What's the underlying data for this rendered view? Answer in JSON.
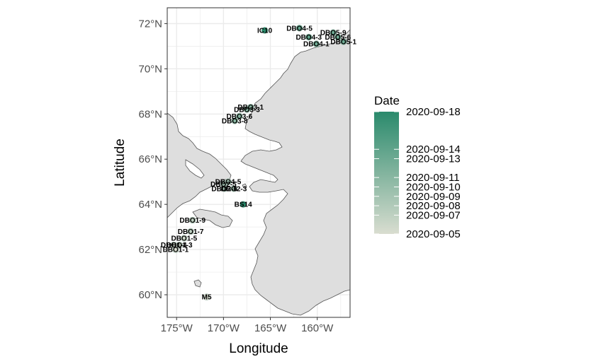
{
  "chart_data": {
    "type": "scatter",
    "xlabel": "Longitude",
    "ylabel": "Latitude",
    "xlim": [
      -176,
      -156.5
    ],
    "ylim": [
      59,
      72.7
    ],
    "x_ticks": [
      {
        "value": -175,
        "label": "175°W"
      },
      {
        "value": -170,
        "label": "170°W"
      },
      {
        "value": -165,
        "label": "165°W"
      },
      {
        "value": -160,
        "label": "160°W"
      }
    ],
    "y_ticks": [
      {
        "value": 60,
        "label": "60°N"
      },
      {
        "value": 62,
        "label": "62°N"
      },
      {
        "value": 64,
        "label": "64°N"
      },
      {
        "value": 66,
        "label": "66°N"
      },
      {
        "value": 68,
        "label": "68°N"
      },
      {
        "value": 70,
        "label": "70°N"
      },
      {
        "value": 72,
        "label": "72°N"
      }
    ],
    "grid": true,
    "legend": {
      "title": "Date",
      "placement": "right",
      "min_date": "2020-09-05",
      "max_date": "2020-09-18",
      "low_color": "#d9ddd0",
      "high_color": "#2a8a6c",
      "breaks": [
        "2020-09-05",
        "2020-09-07",
        "2020-09-08",
        "2020-09-09",
        "2020-09-10",
        "2020-09-11",
        "2020-09-13",
        "2020-09-14",
        "2020-09-18"
      ]
    },
    "stations": [
      {
        "name": "IC10",
        "lon": -165.6,
        "lat": 71.7,
        "date": "2020-09-18"
      },
      {
        "name": "DBO4-5",
        "lon": -161.9,
        "lat": 71.8,
        "date": "2020-09-14"
      },
      {
        "name": "DBO4-3",
        "lon": -160.9,
        "lat": 71.4,
        "date": "2020-09-14"
      },
      {
        "name": "DBO4-1",
        "lon": -160.1,
        "lat": 71.1,
        "date": "2020-09-13"
      },
      {
        "name": "DBO5-9",
        "lon": -158.3,
        "lat": 71.6,
        "date": "2020-09-13"
      },
      {
        "name": "DBO5-6",
        "lon": -157.8,
        "lat": 71.4,
        "date": "2020-09-13"
      },
      {
        "name": "DBO5-1",
        "lon": -157.2,
        "lat": 71.2,
        "date": "2020-09-13"
      },
      {
        "name": "DBO3-1",
        "lon": -167.1,
        "lat": 68.3,
        "date": "2020-09-11"
      },
      {
        "name": "DBO3-3",
        "lon": -167.5,
        "lat": 68.2,
        "date": "2020-09-11"
      },
      {
        "name": "DBO3-6",
        "lon": -168.3,
        "lat": 67.9,
        "date": "2020-09-11"
      },
      {
        "name": "DBO3-8",
        "lon": -168.8,
        "lat": 67.7,
        "date": "2020-09-11"
      },
      {
        "name": "DBO2-5",
        "lon": -170.0,
        "lat": 64.9,
        "date": "2020-09-09"
      },
      {
        "name": "DBO4-5",
        "lon": -169.5,
        "lat": 65.0,
        "date": "2020-09-09"
      },
      {
        "name": "DBO2-6",
        "lon": -169.9,
        "lat": 64.7,
        "date": "2020-09-09"
      },
      {
        "name": "DBO2-3",
        "lon": -168.9,
        "lat": 64.7,
        "date": "2020-09-09"
      },
      {
        "name": "BS14",
        "lon": -167.9,
        "lat": 64.0,
        "date": "2020-09-18"
      },
      {
        "name": "DBO1-9",
        "lon": -173.3,
        "lat": 63.3,
        "date": "2020-09-07"
      },
      {
        "name": "DBO1-7",
        "lon": -173.5,
        "lat": 62.8,
        "date": "2020-09-07"
      },
      {
        "name": "DBO1-5",
        "lon": -174.2,
        "lat": 62.5,
        "date": "2020-09-06"
      },
      {
        "name": "DBO1-3",
        "lon": -174.7,
        "lat": 62.2,
        "date": "2020-09-06"
      },
      {
        "name": "DBO1-4",
        "lon": -175.3,
        "lat": 62.2,
        "date": "2020-09-06"
      },
      {
        "name": "DBO1-1",
        "lon": -175.1,
        "lat": 62.0,
        "date": "2020-09-05"
      },
      {
        "name": "M5",
        "lon": -171.8,
        "lat": 59.9,
        "date": "2020-09-05"
      }
    ]
  }
}
